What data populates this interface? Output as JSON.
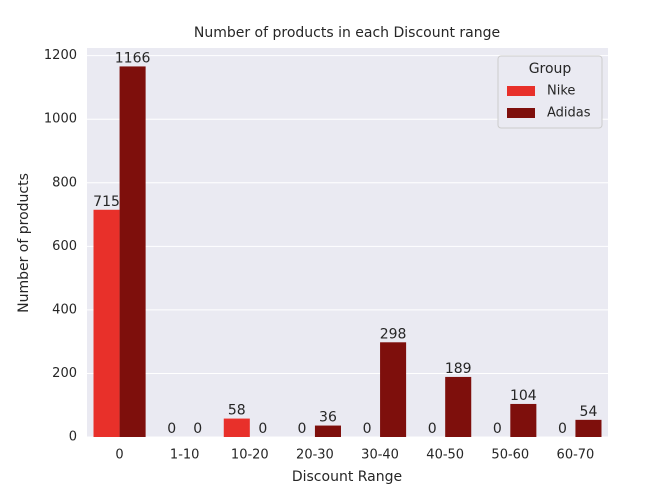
{
  "chart_data": {
    "type": "bar",
    "title": "Number of products in each Discount range",
    "x_label": "Discount Range",
    "y_label": "Number of products",
    "categories": [
      "0",
      "1-10",
      "10-20",
      "20-30",
      "30-40",
      "40-50",
      "50-60",
      "60-70"
    ],
    "series": [
      {
        "name": "Nike",
        "color": "#e8302a",
        "values": [
          715,
          0,
          58,
          0,
          0,
          0,
          0,
          0
        ]
      },
      {
        "name": "Adidas",
        "color": "#7e0f0c",
        "values": [
          1166,
          0,
          0,
          36,
          298,
          189,
          104,
          54
        ]
      }
    ],
    "ylim": [
      0,
      1224
    ],
    "yticks": [
      0,
      200,
      400,
      600,
      800,
      1000,
      1200
    ],
    "grid": true,
    "legend_title": "Group",
    "legend_position": "upper right"
  }
}
